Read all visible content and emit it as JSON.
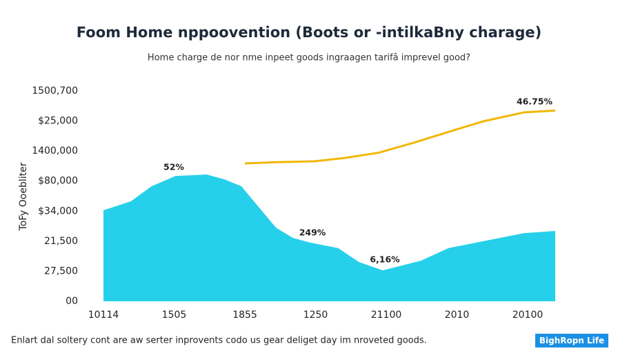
{
  "chart_data": {
    "type": "area",
    "title": "Foom Home nppoovention (Boots or -intilkaBny charage)",
    "subtitle": "Home charge de nor nme inpeet goods ingraagen tarifâ imprevel good?",
    "y_label": "ToFy Ooebliter",
    "footer": "Enlart dal soltery cont are aw serter inprovents codo us gear deliget day im nroveted goods.",
    "badge": "BighRopn Life",
    "annotations": [
      "52%",
      "249%",
      "6,16%",
      "46.75%"
    ],
    "xlim": [
      0,
      6.39
    ],
    "xticks": [
      {
        "value": 0,
        "label": "10114"
      },
      {
        "value": 1,
        "label": "1505"
      },
      {
        "value": 2,
        "label": "1855"
      },
      {
        "value": 3,
        "label": "1250"
      },
      {
        "value": 4,
        "label": "21100"
      },
      {
        "value": 5,
        "label": "2010"
      },
      {
        "value": 6,
        "label": "20100"
      }
    ],
    "ylim": [
      0,
      7
    ],
    "yticks": [
      {
        "value": 0,
        "label": "00"
      },
      {
        "value": 1,
        "label": "27,500"
      },
      {
        "value": 2,
        "label": "21,500"
      },
      {
        "value": 3,
        "label": "$34,000"
      },
      {
        "value": 4,
        "label": "$80,000"
      },
      {
        "value": 5,
        "label": "1400,000"
      },
      {
        "value": 6,
        "label": "$25,000"
      },
      {
        "value": 7,
        "label": "1500,700"
      }
    ],
    "grid": false,
    "series": [
      {
        "type": "area",
        "color": "#26d0ea",
        "x": [
          0,
          0.39,
          0.68,
          1.02,
          1.46,
          1.71,
          1.95,
          2.44,
          2.68,
          2.93,
          3.32,
          3.61,
          3.95,
          4.49,
          4.88,
          5.37,
          5.95,
          6.39
        ],
        "values": [
          3.03,
          3.33,
          3.83,
          4.17,
          4.22,
          4.06,
          3.83,
          2.45,
          2.11,
          1.95,
          1.77,
          1.31,
          1.03,
          1.35,
          1.77,
          2.0,
          2.27,
          2.34
        ]
      },
      {
        "type": "line",
        "color": "#f2b705",
        "x": [
          2.0,
          2.44,
          2.98,
          3.41,
          3.9,
          4.39,
          4.88,
          5.37,
          5.95,
          6.39
        ],
        "values": [
          4.59,
          4.63,
          4.66,
          4.77,
          4.95,
          5.28,
          5.64,
          5.99,
          6.29,
          6.35
        ]
      }
    ]
  }
}
